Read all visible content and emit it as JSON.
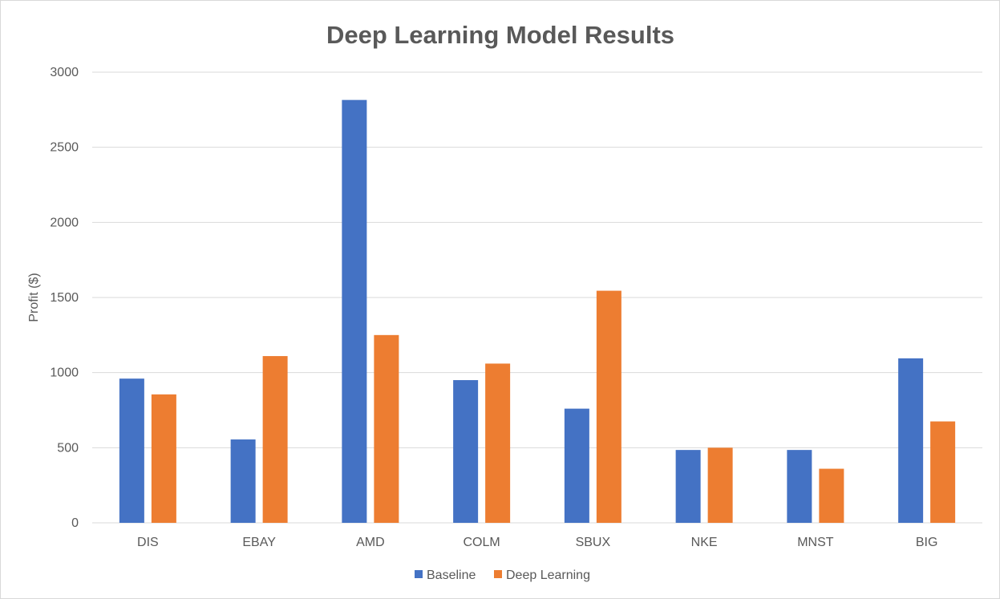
{
  "chart_data": {
    "type": "bar",
    "title": "Deep Learning Model Results",
    "xlabel": "",
    "ylabel": "Profit ($)",
    "ylim": [
      0,
      3000
    ],
    "yticks": [
      0,
      500,
      1000,
      1500,
      2000,
      2500,
      3000
    ],
    "grid": true,
    "legend_position": "bottom",
    "categories": [
      "DIS",
      "EBAY",
      "AMD",
      "COLM",
      "SBUX",
      "NKE",
      "MNST",
      "BIG"
    ],
    "series": [
      {
        "name": "Baseline",
        "color": "#4472c4",
        "values": [
          960,
          555,
          2815,
          950,
          760,
          485,
          485,
          1095
        ]
      },
      {
        "name": "Deep Learning",
        "color": "#ed7d31",
        "values": [
          855,
          1110,
          1250,
          1060,
          1545,
          500,
          360,
          675
        ]
      }
    ]
  }
}
